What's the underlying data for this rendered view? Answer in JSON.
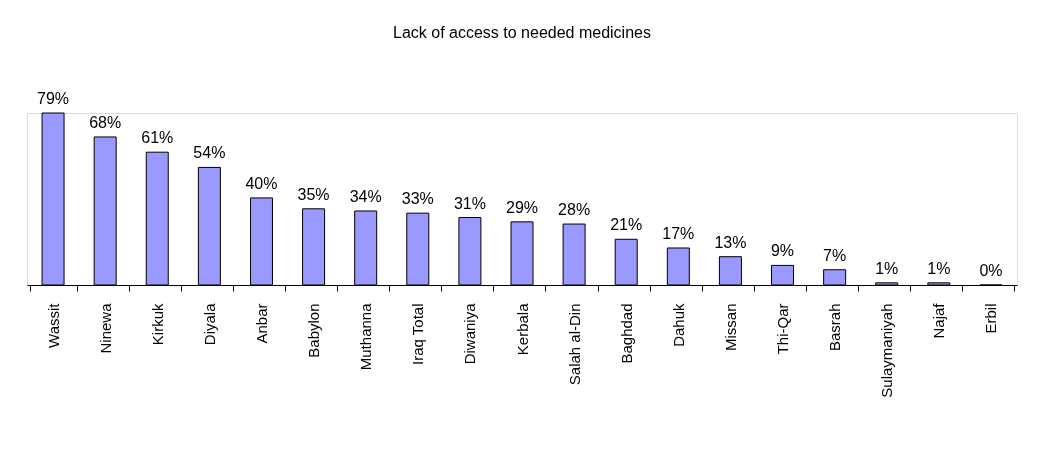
{
  "chart_data": {
    "type": "bar",
    "title": "Lack of access to needed medicines",
    "categories": [
      "Wassit",
      "Ninewa",
      "Kirkuk",
      "Diyala",
      "Anbar",
      "Babylon",
      "Muthanna",
      "Iraq Total",
      "Diwaniya",
      "Kerbala",
      "Salah al-Din",
      "Baghdad",
      "Dahuk",
      "Missan",
      "Thi-Qar",
      "Basrah",
      "Sulaymaniyah",
      "Najaf",
      "Erbil"
    ],
    "values": [
      79,
      68,
      61,
      54,
      40,
      35,
      34,
      33,
      31,
      29,
      28,
      21,
      17,
      13,
      9,
      7,
      1,
      1,
      0
    ],
    "value_labels": [
      "79%",
      "68%",
      "61%",
      "54%",
      "40%",
      "35%",
      "34%",
      "33%",
      "31%",
      "29%",
      "28%",
      "21%",
      "17%",
      "13%",
      "9%",
      "7%",
      "1%",
      "1%",
      "0%"
    ],
    "color": "#9999ff"
  }
}
